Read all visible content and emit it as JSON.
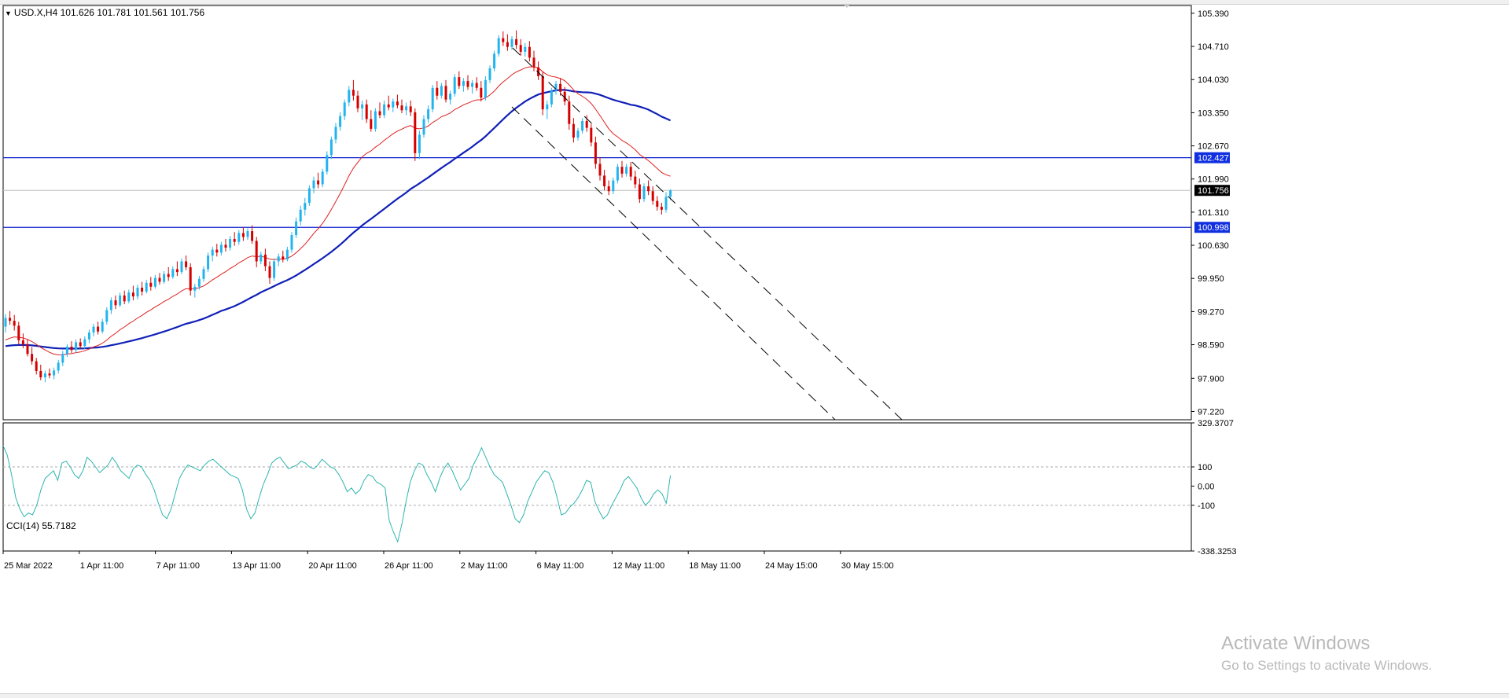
{
  "window": {
    "symbol_line": "USD.X,H4  101.626 101.781 101.561 101.756",
    "cci_line": "CCI(14) 55.7182"
  },
  "watermark": {
    "line1": "Activate Windows",
    "line2": "Go to Settings to activate Windows."
  },
  "colors": {
    "bull": "#22b4ee",
    "bear": "#d40000",
    "ma_fast": "#e02020",
    "ma_slow": "#1020b8",
    "level_line": "#1020d0",
    "level_tag": "#1030e0",
    "current_tag": "#000000",
    "cci": "#2fb5ad"
  },
  "chart_data": [
    {
      "type": "candlestick",
      "symbol": "USD.X",
      "timeframe": "H4",
      "ohlc_last": {
        "open": 101.626,
        "high": 101.781,
        "low": 101.561,
        "close": 101.756
      },
      "y_ticks": [
        "105.390",
        "104.710",
        "104.030",
        "103.350",
        "102.670",
        "101.990",
        "101.310",
        "100.630",
        "99.950",
        "99.270",
        "98.590",
        "97.900",
        "97.220"
      ],
      "x_ticks": [
        "25 Mar 2022",
        "1 Apr 11:00",
        "7 Apr 11:00",
        "13 Apr 11:00",
        "20 Apr 11:00",
        "26 Apr 11:00",
        "2 May 11:00",
        "6 May 11:00",
        "12 May 11:00",
        "18 May 11:00",
        "24 May 15:00",
        "30 May 15:00"
      ],
      "ylim": [
        97.05,
        105.55
      ],
      "candles": [
        [
          98.96,
          99.22,
          98.84,
          99.14
        ],
        [
          99.14,
          99.28,
          99.0,
          99.08
        ],
        [
          99.08,
          99.2,
          98.88,
          98.98
        ],
        [
          98.98,
          99.06,
          98.6,
          98.68
        ],
        [
          98.68,
          98.82,
          98.52,
          98.6
        ],
        [
          98.6,
          98.7,
          98.35,
          98.4
        ],
        [
          98.4,
          98.54,
          98.18,
          98.25
        ],
        [
          98.25,
          98.32,
          97.98,
          98.05
        ],
        [
          98.05,
          98.18,
          97.86,
          97.92
        ],
        [
          97.92,
          98.06,
          97.82,
          98.0
        ],
        [
          98.0,
          98.1,
          97.9,
          97.96
        ],
        [
          97.96,
          98.12,
          97.88,
          98.06
        ],
        [
          98.06,
          98.28,
          98.0,
          98.22
        ],
        [
          98.22,
          98.46,
          98.15,
          98.4
        ],
        [
          98.4,
          98.6,
          98.34,
          98.55
        ],
        [
          98.55,
          98.66,
          98.42,
          98.48
        ],
        [
          98.48,
          98.7,
          98.42,
          98.64
        ],
        [
          98.64,
          98.72,
          98.5,
          98.56
        ],
        [
          98.56,
          98.76,
          98.5,
          98.7
        ],
        [
          98.7,
          98.9,
          98.62,
          98.84
        ],
        [
          98.84,
          99.02,
          98.76,
          98.96
        ],
        [
          98.96,
          99.06,
          98.8,
          98.86
        ],
        [
          98.86,
          99.12,
          98.82,
          99.06
        ],
        [
          99.06,
          99.36,
          99.0,
          99.3
        ],
        [
          99.3,
          99.56,
          99.22,
          99.5
        ],
        [
          99.5,
          99.6,
          99.32,
          99.4
        ],
        [
          99.4,
          99.66,
          99.36,
          99.6
        ],
        [
          99.6,
          99.7,
          99.42,
          99.48
        ],
        [
          99.48,
          99.72,
          99.44,
          99.66
        ],
        [
          99.66,
          99.8,
          99.5,
          99.58
        ],
        [
          99.58,
          99.82,
          99.52,
          99.76
        ],
        [
          99.76,
          99.88,
          99.6,
          99.68
        ],
        [
          99.68,
          99.92,
          99.64,
          99.86
        ],
        [
          99.86,
          99.98,
          99.7,
          99.78
        ],
        [
          99.78,
          100.02,
          99.74,
          99.96
        ],
        [
          99.96,
          100.06,
          99.82,
          99.88
        ],
        [
          99.88,
          100.1,
          99.84,
          100.04
        ],
        [
          100.04,
          100.18,
          99.9,
          99.98
        ],
        [
          99.98,
          100.2,
          99.94,
          100.14
        ],
        [
          100.14,
          100.3,
          100.0,
          100.08
        ],
        [
          100.08,
          100.36,
          100.04,
          100.3
        ],
        [
          100.3,
          100.42,
          100.12,
          100.18
        ],
        [
          100.18,
          100.26,
          99.6,
          99.7
        ],
        [
          99.7,
          99.84,
          99.56,
          99.78
        ],
        [
          99.78,
          100.0,
          99.72,
          99.94
        ],
        [
          99.94,
          100.2,
          99.88,
          100.14
        ],
        [
          100.14,
          100.48,
          100.08,
          100.42
        ],
        [
          100.42,
          100.6,
          100.3,
          100.54
        ],
        [
          100.54,
          100.66,
          100.4,
          100.48
        ],
        [
          100.48,
          100.7,
          100.42,
          100.64
        ],
        [
          100.64,
          100.76,
          100.5,
          100.58
        ],
        [
          100.58,
          100.82,
          100.52,
          100.76
        ],
        [
          100.76,
          100.9,
          100.62,
          100.7
        ],
        [
          100.7,
          100.94,
          100.64,
          100.88
        ],
        [
          100.88,
          101.0,
          100.72,
          100.8
        ],
        [
          100.8,
          100.98,
          100.74,
          100.92
        ],
        [
          100.92,
          101.04,
          100.66,
          100.72
        ],
        [
          100.72,
          100.8,
          100.18,
          100.3
        ],
        [
          100.3,
          100.5,
          100.24,
          100.44
        ],
        [
          100.44,
          100.56,
          100.1,
          100.2
        ],
        [
          100.2,
          100.3,
          99.84,
          99.96
        ],
        [
          99.96,
          100.36,
          99.9,
          100.3
        ],
        [
          100.3,
          100.46,
          100.2,
          100.4
        ],
        [
          100.4,
          100.52,
          100.28,
          100.34
        ],
        [
          100.34,
          100.6,
          100.3,
          100.54
        ],
        [
          100.54,
          100.9,
          100.48,
          100.84
        ],
        [
          100.84,
          101.2,
          100.78,
          101.12
        ],
        [
          101.12,
          101.44,
          101.04,
          101.36
        ],
        [
          101.36,
          101.6,
          101.24,
          101.5
        ],
        [
          101.5,
          101.86,
          101.44,
          101.8
        ],
        [
          101.8,
          102.04,
          101.7,
          101.96
        ],
        [
          101.96,
          102.12,
          101.8,
          101.88
        ],
        [
          101.88,
          102.2,
          101.82,
          102.14
        ],
        [
          102.14,
          102.56,
          102.08,
          102.48
        ],
        [
          102.48,
          102.86,
          102.4,
          102.8
        ],
        [
          102.8,
          103.14,
          102.72,
          103.06
        ],
        [
          103.06,
          103.36,
          102.98,
          103.28
        ],
        [
          103.28,
          103.62,
          103.2,
          103.56
        ],
        [
          103.56,
          103.9,
          103.48,
          103.82
        ],
        [
          103.82,
          104.02,
          103.6,
          103.7
        ],
        [
          103.7,
          103.8,
          103.36,
          103.44
        ],
        [
          103.44,
          103.6,
          103.2,
          103.52
        ],
        [
          103.52,
          103.62,
          103.14,
          103.22
        ],
        [
          103.22,
          103.4,
          102.96,
          103.02
        ],
        [
          103.02,
          103.44,
          102.96,
          103.38
        ],
        [
          103.38,
          103.56,
          103.24,
          103.3
        ],
        [
          103.3,
          103.6,
          103.24,
          103.52
        ],
        [
          103.52,
          103.7,
          103.4,
          103.46
        ],
        [
          103.46,
          103.64,
          103.36,
          103.58
        ],
        [
          103.58,
          103.72,
          103.44,
          103.5
        ],
        [
          103.5,
          103.62,
          103.34,
          103.4
        ],
        [
          103.4,
          103.56,
          103.3,
          103.48
        ],
        [
          103.48,
          103.6,
          103.28,
          103.36
        ],
        [
          103.36,
          103.44,
          102.36,
          102.52
        ],
        [
          102.52,
          102.98,
          102.4,
          102.9
        ],
        [
          102.9,
          103.3,
          102.84,
          103.22
        ],
        [
          103.22,
          103.5,
          103.14,
          103.42
        ],
        [
          103.42,
          103.92,
          103.36,
          103.86
        ],
        [
          103.86,
          104.0,
          103.62,
          103.7
        ],
        [
          103.7,
          103.96,
          103.64,
          103.9
        ],
        [
          103.9,
          104.02,
          103.56,
          103.62
        ],
        [
          103.62,
          103.8,
          103.52,
          103.74
        ],
        [
          103.74,
          104.14,
          103.68,
          104.08
        ],
        [
          104.08,
          104.2,
          103.84,
          103.9
        ],
        [
          103.9,
          104.06,
          103.78,
          104.0
        ],
        [
          104.0,
          104.12,
          103.82,
          103.88
        ],
        [
          103.88,
          104.02,
          103.74,
          103.96
        ],
        [
          103.96,
          104.08,
          103.8,
          103.86
        ],
        [
          103.86,
          104.0,
          103.58,
          103.66
        ],
        [
          103.66,
          104.1,
          103.6,
          104.02
        ],
        [
          104.02,
          104.32,
          103.96,
          104.26
        ],
        [
          104.26,
          104.62,
          104.2,
          104.56
        ],
        [
          104.56,
          104.94,
          104.5,
          104.88
        ],
        [
          104.88,
          105.02,
          104.72,
          104.8
        ],
        [
          104.8,
          104.96,
          104.62,
          104.7
        ],
        [
          104.7,
          104.92,
          104.64,
          104.86
        ],
        [
          104.86,
          105.04,
          104.66,
          104.74
        ],
        [
          104.74,
          104.86,
          104.52,
          104.6
        ],
        [
          104.6,
          104.78,
          104.5,
          104.7
        ],
        [
          104.7,
          104.82,
          104.4,
          104.48
        ],
        [
          104.48,
          104.62,
          104.2,
          104.28
        ],
        [
          104.28,
          104.4,
          104.02,
          104.1
        ],
        [
          104.1,
          104.2,
          103.3,
          103.42
        ],
        [
          103.42,
          103.6,
          103.22,
          103.52
        ],
        [
          103.52,
          103.86,
          103.46,
          103.8
        ],
        [
          103.8,
          104.0,
          103.72,
          103.94
        ],
        [
          103.94,
          104.06,
          103.7,
          103.78
        ],
        [
          103.78,
          103.88,
          103.5,
          103.58
        ],
        [
          103.58,
          103.7,
          103.0,
          103.12
        ],
        [
          103.12,
          103.24,
          102.74,
          102.84
        ],
        [
          102.84,
          103.04,
          102.78,
          102.98
        ],
        [
          102.98,
          103.24,
          102.92,
          103.18
        ],
        [
          103.18,
          103.3,
          102.96,
          103.04
        ],
        [
          103.04,
          103.12,
          102.66,
          102.74
        ],
        [
          102.74,
          102.86,
          102.2,
          102.3
        ],
        [
          102.3,
          102.44,
          101.96,
          102.06
        ],
        [
          102.06,
          102.18,
          101.76,
          101.84
        ],
        [
          101.84,
          101.96,
          101.66,
          101.74
        ],
        [
          101.74,
          102.02,
          101.68,
          101.96
        ],
        [
          101.96,
          102.3,
          101.9,
          102.24
        ],
        [
          102.24,
          102.36,
          102.02,
          102.1
        ],
        [
          102.1,
          102.3,
          102.04,
          102.24
        ],
        [
          102.24,
          102.34,
          101.96,
          102.04
        ],
        [
          102.04,
          102.16,
          101.8,
          101.88
        ],
        [
          101.88,
          102.0,
          101.5,
          101.58
        ],
        [
          101.58,
          101.9,
          101.52,
          101.84
        ],
        [
          101.84,
          101.96,
          101.66,
          101.74
        ],
        [
          101.74,
          101.84,
          101.46,
          101.54
        ],
        [
          101.54,
          101.64,
          101.34,
          101.42
        ],
        [
          101.42,
          101.5,
          101.26,
          101.36
        ],
        [
          101.36,
          101.72,
          101.3,
          101.626
        ],
        [
          101.626,
          101.781,
          101.561,
          101.756
        ]
      ],
      "ma_fast_label": "",
      "ma_slow_label": "",
      "horizontal_levels": [
        102.427,
        100.998
      ],
      "current_price": 101.756,
      "price_tags": [
        "102.427",
        "101.756",
        "100.998"
      ],
      "grid": false
    },
    {
      "type": "line",
      "title": "CCI(14) 55.7182",
      "y_ticks": [
        "329.3707",
        "100",
        "0.00",
        "-100",
        "-338.3253"
      ],
      "ylim": [
        -338.3253,
        329.3707
      ],
      "reference_levels": [
        100,
        -100
      ],
      "values": [
        210,
        160,
        60,
        -60,
        -120,
        -160,
        -140,
        -150,
        -100,
        -20,
        40,
        60,
        80,
        30,
        120,
        130,
        100,
        60,
        40,
        80,
        150,
        130,
        100,
        70,
        90,
        110,
        150,
        120,
        80,
        60,
        40,
        90,
        110,
        100,
        60,
        30,
        -20,
        -90,
        -150,
        -170,
        -120,
        -40,
        40,
        80,
        110,
        100,
        90,
        80,
        110,
        130,
        140,
        120,
        100,
        80,
        60,
        50,
        40,
        -20,
        -120,
        -170,
        -140,
        -60,
        10,
        60,
        120,
        140,
        150,
        120,
        90,
        100,
        110,
        130,
        120,
        100,
        90,
        110,
        140,
        120,
        100,
        90,
        60,
        20,
        -30,
        -10,
        -40,
        -20,
        30,
        60,
        50,
        20,
        10,
        -10,
        -180,
        -240,
        -290,
        -200,
        -80,
        20,
        80,
        120,
        110,
        60,
        20,
        -30,
        40,
        90,
        120,
        80,
        30,
        -20,
        10,
        40,
        110,
        150,
        200,
        150,
        100,
        60,
        40,
        20,
        -40,
        -100,
        -170,
        -190,
        -150,
        -80,
        -30,
        20,
        50,
        80,
        70,
        20,
        -60,
        -150,
        -140,
        -110,
        -90,
        -60,
        -20,
        30,
        20,
        -80,
        -130,
        -170,
        -150,
        -100,
        -60,
        -20,
        30,
        50,
        20,
        -10,
        -60,
        -100,
        -80,
        -40,
        -20,
        -40,
        -90,
        55.72
      ],
      "current_value": 55.7182
    }
  ]
}
